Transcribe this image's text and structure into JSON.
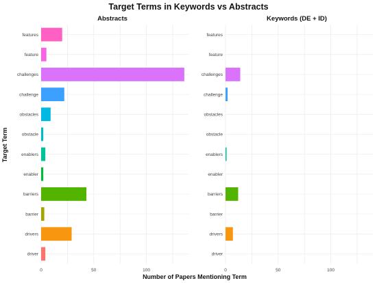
{
  "chart_data": {
    "type": "bar",
    "orientation": "horizontal",
    "title": "Target Terms in Keywords vs Abstracts",
    "xlabel": "Number of Papers Mentioning Term",
    "ylabel": "Target Term",
    "xlim": [
      0,
      140
    ],
    "x_ticks": [
      0,
      50,
      100
    ],
    "grid": true,
    "categories": [
      "features",
      "feature",
      "challenges",
      "challenge",
      "obstacles",
      "obstacle",
      "enablers",
      "enabler",
      "barriers",
      "barrier",
      "drivers",
      "driver"
    ],
    "colors": [
      "#FF61C3",
      "#F564E3",
      "#DB72FB",
      "#3CA0FF",
      "#00B9E3",
      "#00BFC4",
      "#00C19A",
      "#00BA38",
      "#53B400",
      "#A3A500",
      "#F8960F",
      "#F8766D"
    ],
    "panels": [
      {
        "title": "Abstracts",
        "values": [
          20,
          5,
          136,
          22,
          9,
          2,
          4,
          2,
          43,
          3,
          29,
          4
        ]
      },
      {
        "title": "Keywords (DE + ID)",
        "values": [
          0,
          0,
          14,
          2,
          0,
          0,
          1,
          0,
          12,
          0,
          7,
          0
        ]
      }
    ]
  }
}
